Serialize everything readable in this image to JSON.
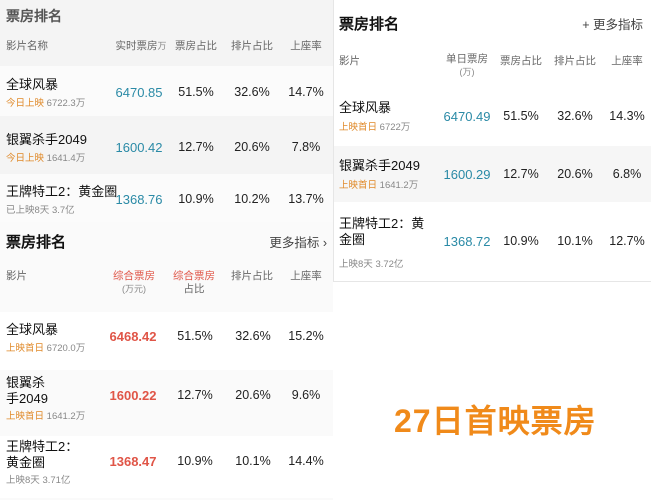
{
  "panel1": {
    "title": "票房排名",
    "headers": [
      "影片名称",
      "实时票房",
      "万",
      "票房占比",
      "排片占比",
      "上座率"
    ],
    "rows": [
      {
        "name": "全球风暴",
        "status": "今日上映",
        "total": "6722.3万",
        "boxoffice": "6470.85",
        "share": "51.5%",
        "screen": "32.6%",
        "seat": "14.7%"
      },
      {
        "name": "银翼杀手2049",
        "status": "今日上映",
        "total": "1641.4万",
        "boxoffice": "1600.42",
        "share": "12.7%",
        "screen": "20.6%",
        "seat": "7.8%"
      },
      {
        "name": "王牌特工2：黄金圈",
        "status": "已上映8天",
        "total": "3.7亿",
        "boxoffice": "1368.76",
        "share": "10.9%",
        "screen": "10.2%",
        "seat": "13.7%"
      }
    ]
  },
  "panel2": {
    "title": "票房排名",
    "more": "更多指标 ›",
    "headers": [
      "影片",
      "综合票房",
      "(万元)",
      "综合票房",
      "占比",
      "排片占比",
      "上座率"
    ],
    "rows": [
      {
        "name_l1": "全球风暴",
        "name_l2": "",
        "status": "上映首日",
        "total": "6720.0万",
        "boxoffice": "6468.42",
        "share": "51.5%",
        "screen": "32.6%",
        "seat": "15.2%"
      },
      {
        "name_l1": "银翼杀",
        "name_l2": "手2049",
        "status": "上映首日",
        "total": "1641.2万",
        "boxoffice": "1600.22",
        "share": "12.7%",
        "screen": "20.6%",
        "seat": "9.6%"
      },
      {
        "name_l1": "王牌特工2：",
        "name_l2": "黄金圈",
        "status": "上映8天",
        "total": "3.71亿",
        "boxoffice": "1368.47",
        "share": "10.9%",
        "screen": "10.1%",
        "seat": "14.4%"
      }
    ]
  },
  "panel3": {
    "title": "票房排名",
    "more": "+ 更多指标",
    "headers": [
      "影片",
      "单日票房",
      "(万)",
      "票房占比",
      "排片占比",
      "上座率"
    ],
    "rows": [
      {
        "name_l1": "全球风暴",
        "name_l2": "",
        "status": "上映首日",
        "total": "6722万",
        "boxoffice": "6470.49",
        "share": "51.5%",
        "screen": "32.6%",
        "seat": "14.3%"
      },
      {
        "name_l1": "银翼杀手2049",
        "name_l2": "",
        "status": "上映首日",
        "total": "1641.2万",
        "boxoffice": "1600.29",
        "share": "12.7%",
        "screen": "20.6%",
        "seat": "6.8%"
      },
      {
        "name_l1": "王牌特工2：黄",
        "name_l2": "金圈",
        "status": "上映8天",
        "total": "3.72亿",
        "boxoffice": "1368.72",
        "share": "10.9%",
        "screen": "10.1%",
        "seat": "12.7%"
      }
    ]
  },
  "caption": "27日首映票房",
  "colors": {
    "accent_blue": "#2a8aa6",
    "accent_red": "#e05547",
    "status_orange": "#e08a2a",
    "caption_orange": "#f08a1a"
  }
}
